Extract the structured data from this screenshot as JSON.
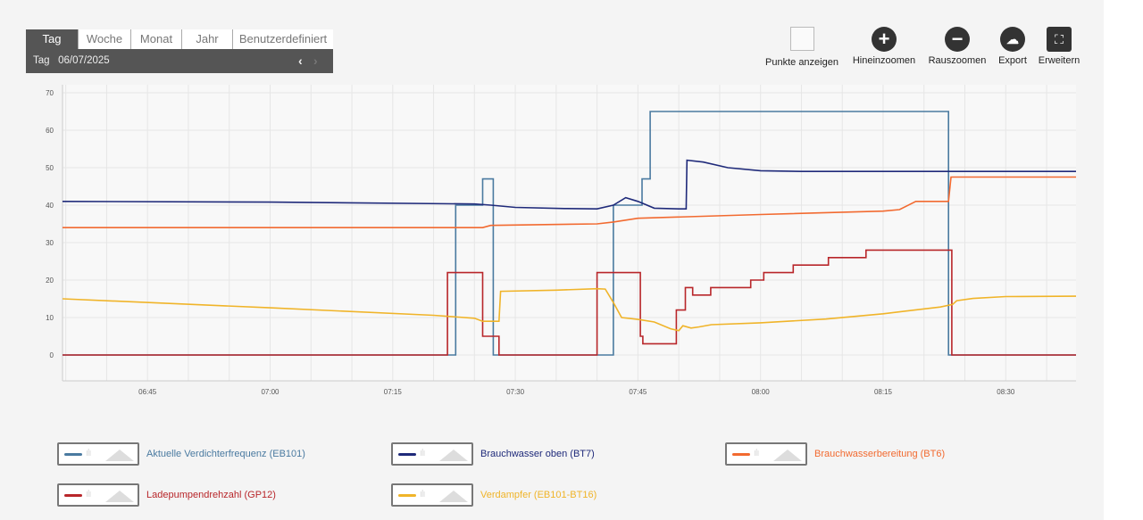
{
  "range_selector": {
    "tabs": [
      "Tag",
      "Woche",
      "Monat",
      "Jahr",
      "Benutzerdefiniert"
    ],
    "active": "Tag",
    "period_label": "Tag",
    "date": "06/07/2025",
    "prev_icon": "chevron-left-icon",
    "next_icon": "chevron-right-icon"
  },
  "toolbar": {
    "show_points": "Punkte anzeigen",
    "zoom_in": "Hineinzoomen",
    "zoom_out": "Rauszoomen",
    "export": "Export",
    "expand": "Erweitern"
  },
  "chart_data": {
    "type": "line",
    "title": "",
    "xlabel": "",
    "ylabel": "",
    "x_unit": "minutes after 06:00",
    "xlim": [
      34.6,
      158.6
    ],
    "ylim": [
      -7,
      70
    ],
    "yticks": [
      0,
      10,
      20,
      30,
      40,
      50,
      60,
      70
    ],
    "xticks": [
      {
        "v": 45,
        "label": "06:45"
      },
      {
        "v": 60,
        "label": "07:00"
      },
      {
        "v": 75,
        "label": "07:15"
      },
      {
        "v": 90,
        "label": "07:30"
      },
      {
        "v": 105,
        "label": "07:45"
      },
      {
        "v": 120,
        "label": "08:00"
      },
      {
        "v": 135,
        "label": "08:15"
      },
      {
        "v": 150,
        "label": "08:30"
      }
    ],
    "grid": true,
    "legend_placement": "bottom",
    "series": [
      {
        "name": "Aktuelle Verdichterfrequenz (EB101)",
        "color": "#4a7aa0",
        "step": true,
        "points": [
          [
            34.6,
            0
          ],
          [
            82.7,
            0
          ],
          [
            82.7,
            40
          ],
          [
            86,
            40
          ],
          [
            86,
            47
          ],
          [
            87.3,
            47
          ],
          [
            87.3,
            0
          ],
          [
            102,
            0
          ],
          [
            102,
            40
          ],
          [
            105.5,
            40
          ],
          [
            105.5,
            47
          ],
          [
            106.5,
            47
          ],
          [
            106.5,
            65
          ],
          [
            143,
            65
          ],
          [
            143,
            0
          ],
          [
            158.6,
            0
          ]
        ]
      },
      {
        "name": "Brauchwasser oben (BT7)",
        "color": "#1f2a7a",
        "step": false,
        "points": [
          [
            34.6,
            41
          ],
          [
            60,
            40.8
          ],
          [
            85,
            40.3
          ],
          [
            87,
            40
          ],
          [
            90,
            39.4
          ],
          [
            96,
            39.1
          ],
          [
            100,
            39
          ],
          [
            102,
            40
          ],
          [
            103.5,
            42
          ],
          [
            105,
            41
          ],
          [
            107,
            39.2
          ],
          [
            110,
            39
          ],
          [
            110.9,
            39
          ],
          [
            111,
            52
          ],
          [
            113,
            51.5
          ],
          [
            116,
            50
          ],
          [
            120,
            49.2
          ],
          [
            125,
            49
          ],
          [
            158.6,
            49
          ]
        ]
      },
      {
        "name": "Brauchwasserbereitung (BT6)",
        "color": "#f26a30",
        "step": false,
        "points": [
          [
            34.6,
            34
          ],
          [
            86,
            34
          ],
          [
            87,
            34.6
          ],
          [
            100,
            35
          ],
          [
            102,
            35.5
          ],
          [
            105,
            36.5
          ],
          [
            120,
            37.5
          ],
          [
            135,
            38.4
          ],
          [
            137,
            38.8
          ],
          [
            139,
            41
          ],
          [
            143,
            41
          ],
          [
            143.3,
            47.5
          ],
          [
            158.6,
            47.5
          ]
        ]
      },
      {
        "name": "Ladepumpendrehzahl (GP12)",
        "color": "#b8262a",
        "step": true,
        "points": [
          [
            34.6,
            0
          ],
          [
            81.7,
            0
          ],
          [
            81.7,
            22
          ],
          [
            86,
            22
          ],
          [
            86,
            5
          ],
          [
            88,
            5
          ],
          [
            88,
            0
          ],
          [
            100,
            0
          ],
          [
            100,
            22
          ],
          [
            105.3,
            22
          ],
          [
            105.3,
            5
          ],
          [
            105.6,
            5
          ],
          [
            105.6,
            3
          ],
          [
            109.7,
            3
          ],
          [
            109.7,
            12
          ],
          [
            110.8,
            12
          ],
          [
            110.8,
            18
          ],
          [
            111.7,
            18
          ],
          [
            111.7,
            16
          ],
          [
            113.9,
            16
          ],
          [
            113.9,
            18
          ],
          [
            118.8,
            18
          ],
          [
            118.8,
            20
          ],
          [
            120.4,
            20
          ],
          [
            120.4,
            22
          ],
          [
            124,
            22
          ],
          [
            124,
            24
          ],
          [
            128.3,
            24
          ],
          [
            128.3,
            26
          ],
          [
            132.9,
            26
          ],
          [
            132.9,
            28
          ],
          [
            143.4,
            28
          ],
          [
            143.4,
            0
          ],
          [
            158.6,
            0
          ]
        ]
      },
      {
        "name": "Verdampfer (EB101-BT16)",
        "color": "#f0b429",
        "step": false,
        "points": [
          [
            34.6,
            15
          ],
          [
            60,
            12.6
          ],
          [
            80,
            10.6
          ],
          [
            85,
            9.8
          ],
          [
            86,
            9
          ],
          [
            88,
            9
          ],
          [
            88.2,
            17
          ],
          [
            95,
            17.3
          ],
          [
            100,
            17.7
          ],
          [
            101,
            17.6
          ],
          [
            102,
            14
          ],
          [
            103,
            10
          ],
          [
            105,
            9.5
          ],
          [
            107,
            8.8
          ],
          [
            109,
            7
          ],
          [
            110,
            6.5
          ],
          [
            110.5,
            7.8
          ],
          [
            111.5,
            7.2
          ],
          [
            112.5,
            7.5
          ],
          [
            114,
            8.1
          ],
          [
            120,
            8.6
          ],
          [
            128,
            9.6
          ],
          [
            135,
            11
          ],
          [
            142,
            12.8
          ],
          [
            143.5,
            13.5
          ],
          [
            144,
            14.5
          ],
          [
            146,
            15.1
          ],
          [
            150,
            15.6
          ],
          [
            158.6,
            15.7
          ]
        ]
      }
    ]
  }
}
